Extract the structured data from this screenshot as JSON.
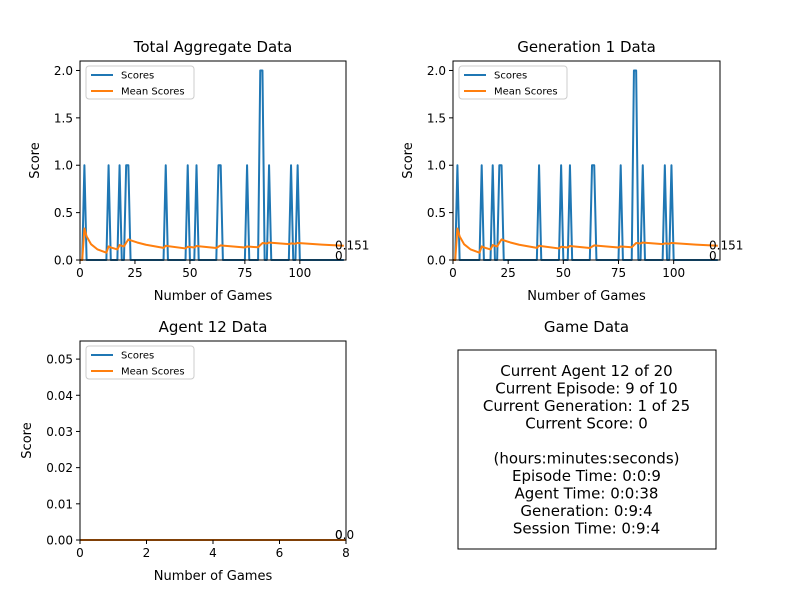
{
  "chart_data": [
    {
      "type": "line",
      "title": "Total Aggregate Data",
      "xlabel": "Number of Games",
      "ylabel": "Score",
      "xlim": [
        0,
        121
      ],
      "ylim": [
        0,
        2.1
      ],
      "xticks": [
        0,
        25,
        50,
        75,
        100
      ],
      "xtick_labels": [
        "0",
        "25",
        "50",
        "75",
        "100"
      ],
      "yticks": [
        0,
        0.5,
        1.0,
        1.5,
        2.0
      ],
      "ytick_labels": [
        "0.0",
        "0.5",
        "1.0",
        "1.5",
        "2.0"
      ],
      "legend": {
        "position": "top-left",
        "entries": [
          "Scores",
          "Mean Scores"
        ]
      },
      "end_labels": [
        "0.151",
        "0"
      ],
      "grid": false,
      "series": [
        {
          "name": "Scores",
          "color": "#1f77b4",
          "x": [
            0,
            1,
            2,
            3,
            12,
            13,
            14,
            17,
            18,
            19,
            20,
            21,
            22,
            23,
            38,
            39,
            40,
            48,
            49,
            50,
            52,
            53,
            54,
            62,
            63,
            64,
            65,
            75,
            76,
            77,
            81,
            82,
            83,
            84,
            85,
            86,
            87,
            95,
            96,
            97,
            98,
            99,
            100,
            120
          ],
          "y": [
            0,
            0,
            1,
            0,
            0,
            1,
            0,
            0,
            1,
            0,
            0,
            1,
            1,
            0,
            0,
            1,
            0,
            0,
            1,
            0,
            0,
            1,
            0,
            0,
            1,
            1,
            0,
            0,
            1,
            0,
            0,
            2,
            2,
            0,
            0,
            1,
            0,
            0,
            1,
            0,
            0,
            1,
            0,
            0
          ]
        },
        {
          "name": "Mean Scores",
          "color": "#ff7f0e",
          "x": [
            0,
            1,
            2,
            3,
            5,
            8,
            12,
            13,
            14,
            17,
            18,
            19,
            20,
            21,
            22,
            23,
            26,
            30,
            38,
            39,
            40,
            48,
            49,
            50,
            52,
            53,
            54,
            62,
            63,
            64,
            65,
            75,
            76,
            77,
            81,
            82,
            83,
            85,
            86,
            87,
            95,
            96,
            98,
            99,
            100,
            110,
            120
          ],
          "y": [
            0,
            0,
            0.333,
            0.25,
            0.167,
            0.111,
            0.077,
            0.143,
            0.133,
            0.111,
            0.158,
            0.15,
            0.143,
            0.182,
            0.217,
            0.208,
            0.185,
            0.161,
            0.128,
            0.15,
            0.146,
            0.122,
            0.14,
            0.137,
            0.132,
            0.148,
            0.145,
            0.127,
            0.141,
            0.154,
            0.152,
            0.132,
            0.143,
            0.141,
            0.134,
            0.157,
            0.179,
            0.174,
            0.184,
            0.182,
            0.167,
            0.175,
            0.172,
            0.18,
            0.178,
            0.162,
            0.151
          ]
        }
      ]
    },
    {
      "type": "line",
      "title": "Generation 1 Data",
      "xlabel": "Number of Games",
      "ylabel": "Score",
      "xlim": [
        0,
        121
      ],
      "ylim": [
        0,
        2.1
      ],
      "xticks": [
        0,
        25,
        50,
        75,
        100
      ],
      "xtick_labels": [
        "0",
        "25",
        "50",
        "75",
        "100"
      ],
      "yticks": [
        0,
        0.5,
        1.0,
        1.5,
        2.0
      ],
      "ytick_labels": [
        "0.0",
        "0.5",
        "1.0",
        "1.5",
        "2.0"
      ],
      "legend": {
        "position": "top-left",
        "entries": [
          "Scores",
          "Mean Scores"
        ]
      },
      "end_labels": [
        "0.151",
        "0"
      ],
      "grid": false,
      "series": [
        {
          "name": "Scores",
          "color": "#1f77b4",
          "x": [
            0,
            1,
            2,
            3,
            12,
            13,
            14,
            17,
            18,
            19,
            20,
            21,
            22,
            23,
            38,
            39,
            40,
            48,
            49,
            50,
            52,
            53,
            54,
            62,
            63,
            64,
            65,
            75,
            76,
            77,
            81,
            82,
            83,
            84,
            85,
            86,
            87,
            95,
            96,
            97,
            98,
            99,
            100,
            120
          ],
          "y": [
            0,
            0,
            1,
            0,
            0,
            1,
            0,
            0,
            1,
            0,
            0,
            1,
            1,
            0,
            0,
            1,
            0,
            0,
            1,
            0,
            0,
            1,
            0,
            0,
            1,
            1,
            0,
            0,
            1,
            0,
            0,
            2,
            2,
            0,
            0,
            1,
            0,
            0,
            1,
            0,
            0,
            1,
            0,
            0
          ]
        },
        {
          "name": "Mean Scores",
          "color": "#ff7f0e",
          "x": [
            0,
            1,
            2,
            3,
            5,
            8,
            12,
            13,
            14,
            17,
            18,
            19,
            20,
            21,
            22,
            23,
            26,
            30,
            38,
            39,
            40,
            48,
            49,
            50,
            52,
            53,
            54,
            62,
            63,
            64,
            65,
            75,
            76,
            77,
            81,
            82,
            83,
            85,
            86,
            87,
            95,
            96,
            98,
            99,
            100,
            110,
            120
          ],
          "y": [
            0,
            0,
            0.333,
            0.25,
            0.167,
            0.111,
            0.077,
            0.143,
            0.133,
            0.111,
            0.158,
            0.15,
            0.143,
            0.182,
            0.217,
            0.208,
            0.185,
            0.161,
            0.128,
            0.15,
            0.146,
            0.122,
            0.14,
            0.137,
            0.132,
            0.148,
            0.145,
            0.127,
            0.141,
            0.154,
            0.152,
            0.132,
            0.143,
            0.141,
            0.134,
            0.157,
            0.179,
            0.174,
            0.184,
            0.182,
            0.167,
            0.175,
            0.172,
            0.18,
            0.178,
            0.162,
            0.151
          ]
        }
      ]
    },
    {
      "type": "line",
      "title": "Agent 12 Data",
      "xlabel": "Number of Games",
      "ylabel": "Score",
      "xlim": [
        0,
        8
      ],
      "ylim": [
        0,
        0.055
      ],
      "xticks": [
        0,
        2,
        4,
        6,
        8
      ],
      "xtick_labels": [
        "0",
        "2",
        "4",
        "6",
        "8"
      ],
      "yticks": [
        0,
        0.01,
        0.02,
        0.03,
        0.04,
        0.05
      ],
      "ytick_labels": [
        "0.00",
        "0.01",
        "0.02",
        "0.03",
        "0.04",
        "0.05"
      ],
      "legend": {
        "position": "top-left",
        "entries": [
          "Scores",
          "Mean Scores"
        ]
      },
      "end_labels": [
        "0.0",
        "0"
      ],
      "grid": false,
      "series": [
        {
          "name": "Scores",
          "color": "#1f77b4",
          "x": [
            0,
            1,
            2,
            3,
            4,
            5,
            6,
            7,
            8
          ],
          "y": [
            0,
            0,
            0,
            0,
            0,
            0,
            0,
            0,
            0
          ]
        },
        {
          "name": "Mean Scores",
          "color": "#ff7f0e",
          "x": [
            0,
            1,
            2,
            3,
            4,
            5,
            6,
            7,
            8
          ],
          "y": [
            0,
            0,
            0,
            0,
            0,
            0,
            0,
            0,
            0
          ]
        }
      ]
    }
  ],
  "game_data": {
    "title": "Game Data",
    "lines": [
      "Current Agent 12 of 20",
      "Current Episode: 9 of 10",
      "Current Generation: 1 of 25",
      "Current Score: 0",
      "",
      "(hours:minutes:seconds)",
      "Episode Time: 0:0:9",
      "Agent Time: 0:0:38",
      "Generation: 0:9:4",
      "Session Time: 0:9:4"
    ]
  }
}
